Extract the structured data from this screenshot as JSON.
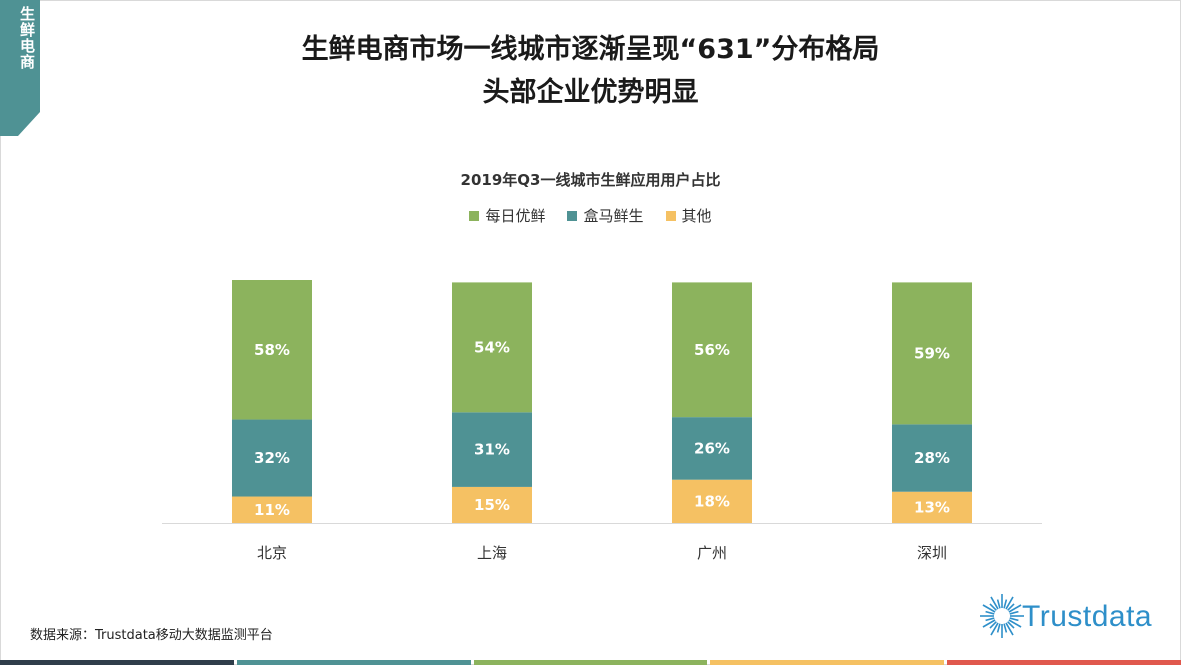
{
  "section_tag": {
    "label": "生鲜电商",
    "color": "#4f9294"
  },
  "headline": {
    "line1": "生鲜电商市场一线城市逐渐呈现“631”分布格局",
    "line2": "头部企业优势明显"
  },
  "chart_data": {
    "type": "bar",
    "stacked": true,
    "title": "2019年Q3一线城市生鲜应用用户占比",
    "categories": [
      "北京",
      "上海",
      "广州",
      "深圳"
    ],
    "series": [
      {
        "name": "其他",
        "color": "#f5c163",
        "values": [
          11,
          15,
          18,
          13
        ],
        "labels": [
          "11%",
          "15%",
          "18%",
          "13%"
        ]
      },
      {
        "name": "盒马鲜生",
        "color": "#4f9294",
        "values": [
          32,
          31,
          26,
          28
        ],
        "labels": [
          "32%",
          "31%",
          "26%",
          "28%"
        ]
      },
      {
        "name": "每日优鲜",
        "color": "#8cb35d",
        "values": [
          58,
          54,
          56,
          59
        ],
        "labels": [
          "58%",
          "54%",
          "56%",
          "59%"
        ]
      }
    ],
    "legend_order": [
      "每日优鲜",
      "盒马鲜生",
      "其他"
    ],
    "ylim": [
      0,
      100
    ],
    "legend_position": "top-center",
    "grid": false,
    "xlabel": "",
    "ylabel": ""
  },
  "source": "数据来源：Trustdata移动大数据监测平台",
  "brand": {
    "name": "Trustdata",
    "color": "#2e8fc9"
  },
  "bottom_bar_colors": [
    "#2f3d4a",
    "#4f9294",
    "#8cb35d",
    "#f5c163",
    "#e0584d"
  ]
}
